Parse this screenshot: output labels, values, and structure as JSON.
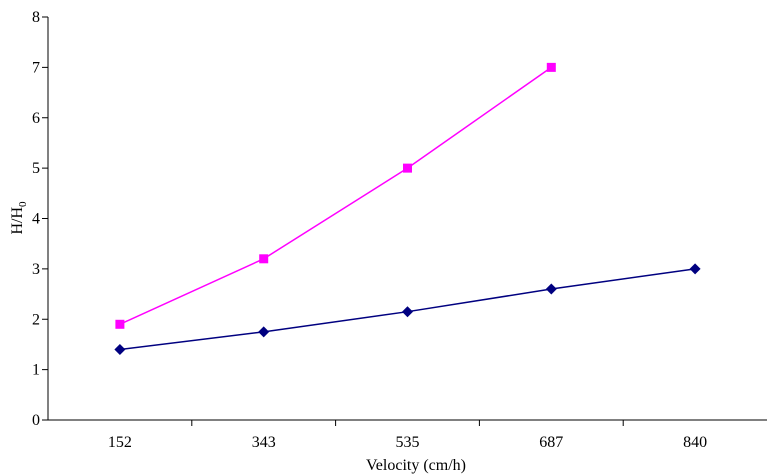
{
  "chart_data": {
    "type": "line",
    "title": "",
    "xlabel": "Velocity (cm/h)",
    "ylabel": "H/H",
    "ylabel_subscript": "0",
    "categories": [
      "152",
      "343",
      "535",
      "687",
      "840"
    ],
    "ylim": [
      0,
      8
    ],
    "yticks": [
      "0",
      "1",
      "2",
      "3",
      "4",
      "5",
      "6",
      "7",
      "8"
    ],
    "grid": false,
    "legend": "none",
    "series": [
      {
        "marker": "diamond",
        "color": "#000080",
        "values": [
          1.4,
          1.75,
          2.15,
          2.6,
          3.0
        ]
      },
      {
        "marker": "square",
        "color": "#FF00FF",
        "values": [
          1.9,
          3.2,
          5.0,
          7.0,
          null
        ]
      }
    ]
  }
}
